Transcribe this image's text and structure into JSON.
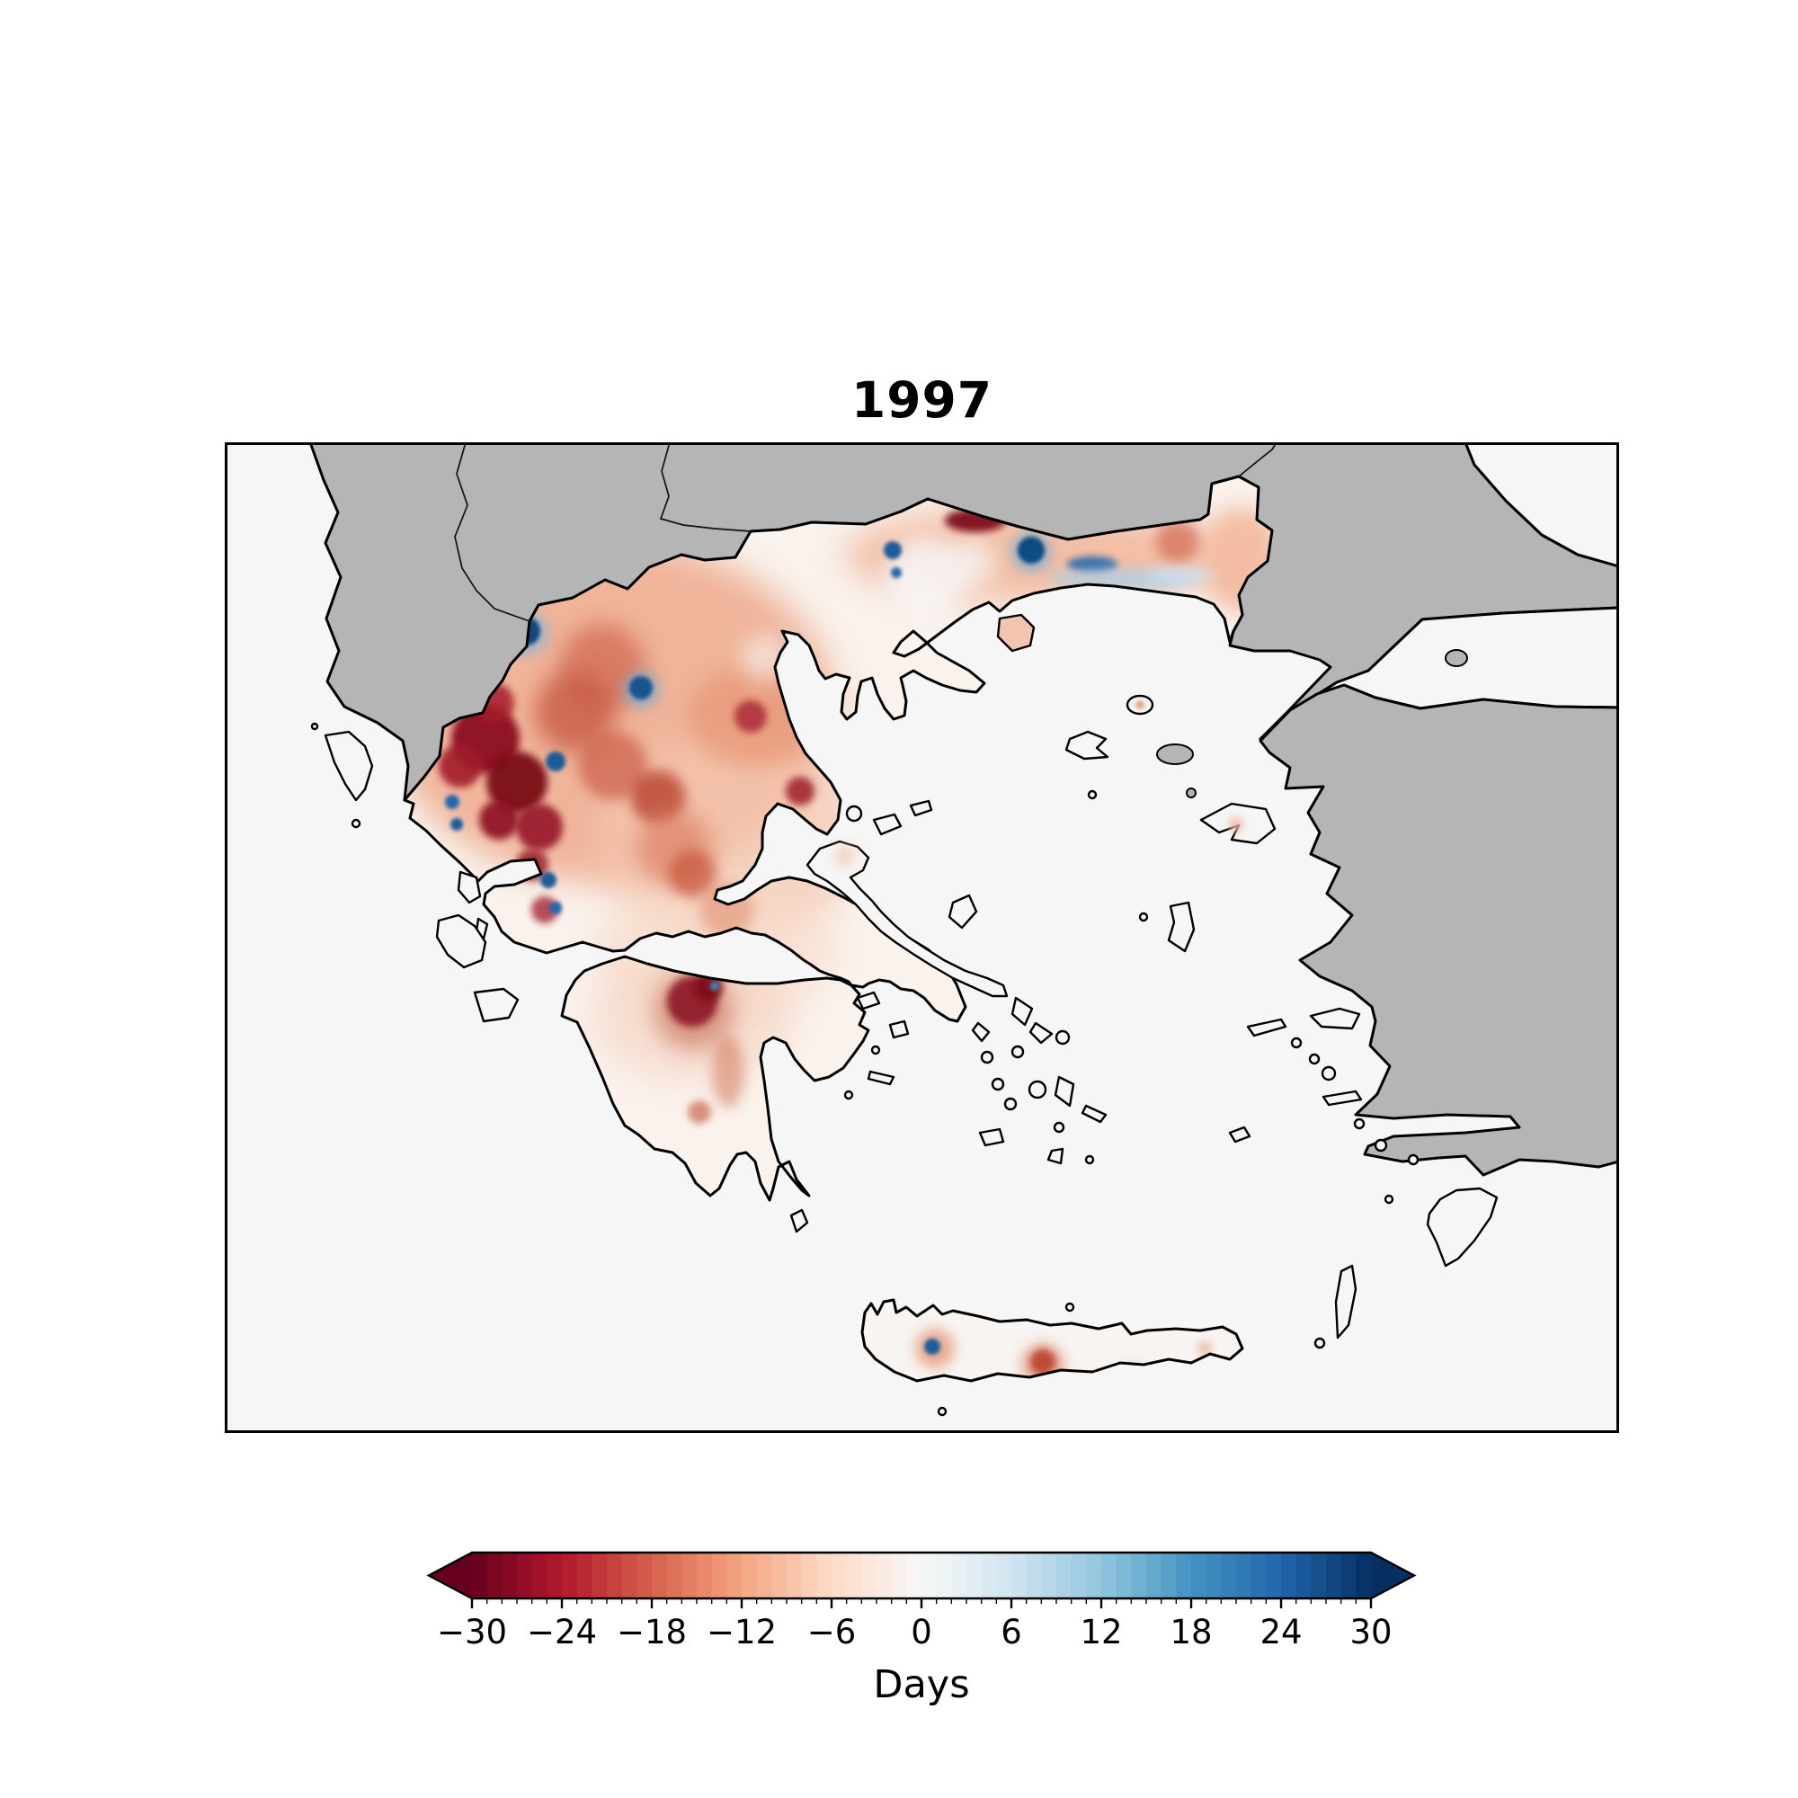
{
  "figure": {
    "title": "1997",
    "background_color": "#ffffff"
  },
  "map": {
    "description": "Filled-contour anomaly map of Greece and the Aegean; neighbouring countries (Albania, North Macedonia, Bulgaria, Turkey) masked in gray; sea near-white",
    "sea_color": "#f6f6f6",
    "outside_domain_land_color": "#b5b5b5",
    "coastline_color": "#000000",
    "greece_base_color": "#faf2ec"
  },
  "colorbar": {
    "label": "Days",
    "vmin": -30,
    "vmax": 30,
    "major_ticks": [
      -30,
      -24,
      -18,
      -12,
      -6,
      0,
      6,
      12,
      18,
      24,
      30
    ],
    "minor_tick_step": 1,
    "level_step": 1,
    "extend": "both",
    "orientation": "horizontal",
    "colormap": {
      "name": "RdBu",
      "anchors": [
        "#67001f",
        "#b2182b",
        "#d6604d",
        "#f4a582",
        "#fddbc7",
        "#f7f7f7",
        "#d1e5f0",
        "#92c5de",
        "#4393c3",
        "#2166ac",
        "#053061"
      ]
    }
  },
  "chart_data": {
    "type": "heatmap",
    "title": "1997",
    "legend_label": "Days",
    "units": "days",
    "value_range": [
      -30,
      30
    ],
    "colormap": "RdBu (negative = red, positive = blue)",
    "geographic_extent": "Greece, Ionian and Aegean seas, Crete; surrounding countries masked gray",
    "regions": [
      {
        "region": "Epirus / Pindus mountains (NW Greece)",
        "value_days": -24
      },
      {
        "region": "Albanian border ridge pockets",
        "value_days": -28
      },
      {
        "region": "Western Macedonia",
        "value_days": -14
      },
      {
        "region": "Northern border spot (Rhodopi, on Bulgarian border)",
        "value_days": -26
      },
      {
        "region": "Central Macedonia plain",
        "value_days": -4
      },
      {
        "region": "Eastern Macedonia and Thrace band",
        "value_days": -9
      },
      {
        "region": "Thrace coastal strip (Nestos-Evros)",
        "value_days": 10
      },
      {
        "region": "Mountain lakes pockets (Prespa, Kastoria, Pamvotida, Trichonida)",
        "value_days": 22
      },
      {
        "region": "NE Evros tip",
        "value_days": -7
      },
      {
        "region": "Thessaly",
        "value_days": -8
      },
      {
        "region": "Mt Olympus / Pelion spots",
        "value_days": -16
      },
      {
        "region": "Central Greece / Aetolia",
        "value_days": -6
      },
      {
        "region": "Attica and Euboea",
        "value_days": -2
      },
      {
        "region": "North-central Peloponnese (Kalavryta/Erymanthos)",
        "value_days": -20
      },
      {
        "region": "Coastal Peloponnese",
        "value_days": -4
      },
      {
        "region": "Aegean islands",
        "value_days": 0
      },
      {
        "region": "Central Crete spots",
        "value_days": -10
      },
      {
        "region": "West Crete lake pixel",
        "value_days": 18
      },
      {
        "region": "Thasos island",
        "value_days": -8
      }
    ]
  }
}
